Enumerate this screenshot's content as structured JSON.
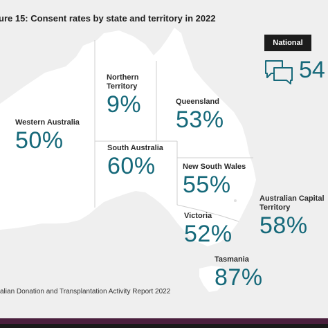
{
  "title": "ure 15: Consent rates by state and territory in 2022",
  "source": "alian Donation and Transplantation Activity Report 2022",
  "colors": {
    "accent": "#16697a",
    "map": "#ffffff",
    "badge": "#1c1c1c"
  },
  "national": {
    "label": "National",
    "value": "54",
    "icon": "speech-bubbles-icon"
  },
  "chart_data": {
    "type": "table",
    "categories": [
      "Northern Territory",
      "Western Australia",
      "Queensland",
      "South Australia",
      "New South Wales",
      "Victoria",
      "Australian Capital Territory",
      "Tasmania"
    ],
    "values": [
      9,
      50,
      53,
      60,
      55,
      52,
      58,
      87
    ],
    "value_labels": [
      "9%",
      "50%",
      "53%",
      "60%",
      "55%",
      "52%",
      "58%",
      "87%"
    ],
    "unit": "%"
  }
}
